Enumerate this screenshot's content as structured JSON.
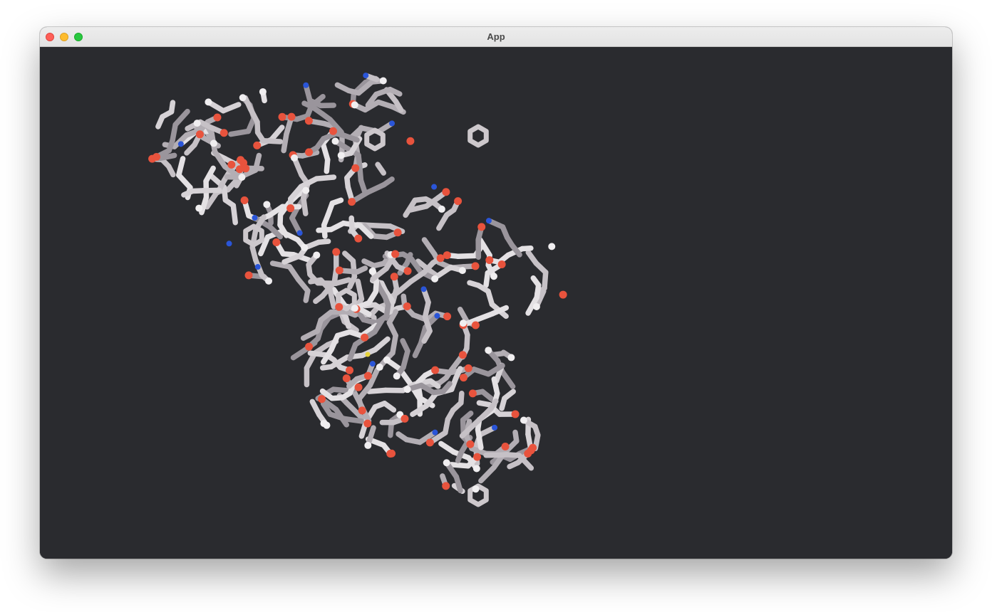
{
  "window": {
    "title": "App"
  },
  "viewer": {
    "background_color": "#2a2b2f",
    "bond_color": "#cdc8cc",
    "atom_colors": {
      "carbon": "#cdc8cc",
      "oxygen": "#e8533d",
      "nitrogen": "#2a55d8",
      "hydrogen": "#f0eef0",
      "sulfur": "#e6d23a"
    },
    "representation": "licorice"
  },
  "icons": {
    "close": "close-icon",
    "minimize": "minimize-icon",
    "maximize": "maximize-icon"
  }
}
